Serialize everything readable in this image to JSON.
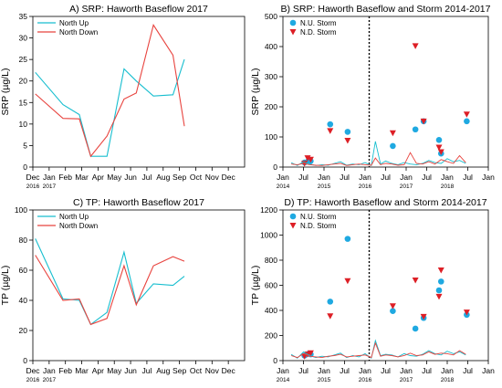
{
  "chart_data": [
    {
      "id": "A",
      "type": "line",
      "title": "A) SRP: Haworth Baseflow 2017",
      "ylabel": "SRP (µg/L)",
      "xlabel": "",
      "ylim": [
        0,
        35
      ],
      "yticks": [
        0,
        5,
        10,
        15,
        20,
        25,
        30,
        35
      ],
      "xlim": [
        0,
        13
      ],
      "xticks": [
        {
          "x": 0,
          "label": "Dec",
          "sub": "2016"
        },
        {
          "x": 1,
          "label": "Jan",
          "sub": "2017"
        },
        {
          "x": 2,
          "label": "Feb"
        },
        {
          "x": 3,
          "label": "Mar"
        },
        {
          "x": 4,
          "label": "Apr"
        },
        {
          "x": 5,
          "label": "May"
        },
        {
          "x": 6,
          "label": "Jun"
        },
        {
          "x": 7,
          "label": "Jul"
        },
        {
          "x": 8,
          "label": "Aug"
        },
        {
          "x": 9,
          "label": "Sep"
        },
        {
          "x": 10,
          "label": "Oct"
        },
        {
          "x": 11,
          "label": "Nov"
        },
        {
          "x": 12,
          "label": "Dec"
        }
      ],
      "legend": {
        "position": "top-left"
      },
      "series": [
        {
          "name": "North Up",
          "color": "#17becf",
          "x": [
            0.15,
            1.85,
            2.85,
            3.55,
            4.55,
            5.6,
            6.35,
            7.4,
            8.6,
            9.3
          ],
          "y": [
            22,
            14.5,
            12.2,
            2.5,
            2.5,
            22.8,
            20,
            16.5,
            16.8,
            25
          ]
        },
        {
          "name": "North Down",
          "color": "#e8433e",
          "x": [
            0.15,
            1.85,
            2.85,
            3.55,
            4.55,
            5.6,
            6.35,
            7.4,
            8.6,
            9.3
          ],
          "y": [
            17,
            11.3,
            11.2,
            2.5,
            7.2,
            15.8,
            17.2,
            33,
            26,
            9.5
          ]
        }
      ]
    },
    {
      "id": "B",
      "type": "scatter",
      "title": "B) SRP: Haworth Baseflow and Storm 2014-2017",
      "ylabel": "SRP (µg/L)",
      "xlabel": "",
      "ylim": [
        0,
        500
      ],
      "yticks": [
        0,
        100,
        200,
        300,
        400,
        500
      ],
      "xlim": [
        0,
        10
      ],
      "xticks": [
        {
          "x": 0,
          "label": "Jan",
          "sub": "2014"
        },
        {
          "x": 1,
          "label": "Jul"
        },
        {
          "x": 2,
          "label": "Jan",
          "sub": "2015"
        },
        {
          "x": 3,
          "label": "Jul"
        },
        {
          "x": 4,
          "label": "Jan",
          "sub": "2016"
        },
        {
          "x": 5,
          "label": "Jul"
        },
        {
          "x": 6,
          "label": "Jan",
          "sub": "2017"
        },
        {
          "x": 7,
          "label": "Jul"
        },
        {
          "x": 8,
          "label": "Jan",
          "sub": "2018"
        },
        {
          "x": 9,
          "label": "Jul"
        },
        {
          "x": 10,
          "label": "Jan"
        }
      ],
      "divider_x": 4.2,
      "legend": {
        "position": "top-left"
      },
      "series": [
        {
          "name": "N.U. Storm",
          "color": "#1fa9e1",
          "marker": "circle",
          "x": [
            1.05,
            1.25,
            1.35,
            2.3,
            3.15,
            5.35,
            6.45,
            6.85,
            7.6,
            7.7,
            8.95
          ],
          "y": [
            15,
            22,
            20,
            142,
            117,
            70,
            125,
            152,
            90,
            45,
            152
          ]
        },
        {
          "name": "N.D. Storm",
          "color": "#dd1f26",
          "marker": "triangle",
          "x": [
            1.05,
            1.2,
            1.35,
            2.3,
            3.15,
            5.35,
            6.45,
            6.85,
            7.6,
            7.7,
            8.95
          ],
          "y": [
            12,
            30,
            25,
            120,
            88,
            113,
            402,
            152,
            65,
            50,
            175
          ]
        },
        {
          "name": "",
          "color": "#17becf",
          "marker": "line",
          "x": [
            0.4,
            0.7,
            1.0,
            1.3,
            1.6,
            1.9,
            2.2,
            2.5,
            2.8,
            3.1,
            3.4,
            3.7,
            4.0,
            4.3,
            4.5,
            4.75,
            5.0,
            5.3,
            5.6,
            5.9,
            6.2,
            6.5,
            6.8,
            7.1,
            7.4,
            7.7,
            8.0,
            8.3,
            8.6,
            8.9
          ],
          "y": [
            15,
            5,
            18,
            10,
            5,
            8,
            6,
            12,
            18,
            6,
            10,
            8,
            15,
            5,
            85,
            10,
            20,
            12,
            8,
            15,
            10,
            8,
            12,
            22,
            15,
            12,
            28,
            18,
            22,
            12
          ]
        },
        {
          "name": "",
          "color": "#e8433e",
          "marker": "line",
          "x": [
            0.4,
            0.7,
            1.0,
            1.3,
            1.6,
            1.9,
            2.2,
            2.5,
            2.8,
            3.1,
            3.4,
            3.7,
            4.0,
            4.3,
            4.5,
            4.75,
            5.0,
            5.3,
            5.6,
            5.9,
            6.2,
            6.5,
            6.8,
            7.1,
            7.4,
            7.7,
            8.0,
            8.3,
            8.6,
            8.9
          ],
          "y": [
            10,
            8,
            12,
            8,
            6,
            5,
            8,
            10,
            12,
            5,
            8,
            10,
            8,
            6,
            30,
            8,
            12,
            10,
            6,
            8,
            48,
            12,
            10,
            18,
            10,
            25,
            18,
            12,
            38,
            15
          ]
        }
      ]
    },
    {
      "id": "C",
      "type": "line",
      "title": "C) TP: Haworth Baseflow 2017",
      "ylabel": "TP (µg/L)",
      "xlabel": "",
      "ylim": [
        0,
        100
      ],
      "yticks": [
        0,
        20,
        40,
        60,
        80,
        100
      ],
      "xlim": [
        0,
        13
      ],
      "xticks": [
        {
          "x": 0,
          "label": "Dec",
          "sub": "2016"
        },
        {
          "x": 1,
          "label": "Jan",
          "sub": "2017"
        },
        {
          "x": 2,
          "label": "Feb"
        },
        {
          "x": 3,
          "label": "Mar"
        },
        {
          "x": 4,
          "label": "Apr"
        },
        {
          "x": 5,
          "label": "May"
        },
        {
          "x": 6,
          "label": "Jun"
        },
        {
          "x": 7,
          "label": "Jul"
        },
        {
          "x": 8,
          "label": "Aug"
        },
        {
          "x": 9,
          "label": "Sep"
        },
        {
          "x": 10,
          "label": "Oct"
        },
        {
          "x": 11,
          "label": "Nov"
        },
        {
          "x": 12,
          "label": "Dec"
        }
      ],
      "legend": {
        "position": "top-left"
      },
      "series": [
        {
          "name": "North Up",
          "color": "#17becf",
          "x": [
            0.15,
            1.85,
            2.85,
            3.55,
            4.55,
            5.6,
            6.35,
            7.4,
            8.6,
            9.3
          ],
          "y": [
            81,
            41,
            40,
            24,
            32,
            72,
            38,
            51,
            50,
            56
          ]
        },
        {
          "name": "North Down",
          "color": "#e8433e",
          "x": [
            0.15,
            1.85,
            2.85,
            3.55,
            4.55,
            5.6,
            6.35,
            7.4,
            8.6,
            9.3
          ],
          "y": [
            70,
            40,
            41,
            24,
            28,
            63,
            37,
            63,
            69,
            66
          ]
        }
      ]
    },
    {
      "id": "D",
      "type": "scatter",
      "title": "D) TP: Haworth Baseflow and Storm 2014-2017",
      "ylabel": "TP (µg/L)",
      "xlabel": "",
      "ylim": [
        0,
        1200
      ],
      "yticks": [
        0,
        200,
        400,
        600,
        800,
        1000,
        1200
      ],
      "xlim": [
        0,
        10
      ],
      "xticks": [
        {
          "x": 0,
          "label": "Jan",
          "sub": "2014"
        },
        {
          "x": 1,
          "label": "Jul"
        },
        {
          "x": 2,
          "label": "Jan",
          "sub": "2015"
        },
        {
          "x": 3,
          "label": "Jul"
        },
        {
          "x": 4,
          "label": "Jan",
          "sub": "2016"
        },
        {
          "x": 5,
          "label": "Jul"
        },
        {
          "x": 6,
          "label": "Jan",
          "sub": "2017"
        },
        {
          "x": 7,
          "label": "Jul"
        },
        {
          "x": 8,
          "label": "Jan",
          "sub": "2018"
        },
        {
          "x": 9,
          "label": "Jul"
        },
        {
          "x": 10,
          "label": "Jan"
        }
      ],
      "divider_x": 4.2,
      "legend": {
        "position": "top-left"
      },
      "series": [
        {
          "name": "N.U. Storm",
          "color": "#1fa9e1",
          "marker": "circle",
          "x": [
            1.05,
            1.25,
            1.35,
            2.3,
            3.15,
            5.35,
            6.45,
            6.85,
            7.6,
            7.7,
            8.95
          ],
          "y": [
            40,
            55,
            50,
            470,
            970,
            395,
            255,
            340,
            560,
            630,
            365
          ]
        },
        {
          "name": "N.D. Storm",
          "color": "#dd1f26",
          "marker": "triangle",
          "x": [
            1.05,
            1.2,
            1.35,
            2.3,
            3.15,
            5.35,
            6.45,
            6.85,
            7.6,
            7.7,
            8.95
          ],
          "y": [
            35,
            50,
            60,
            355,
            635,
            435,
            640,
            350,
            510,
            720,
            385
          ]
        },
        {
          "name": "",
          "color": "#17becf",
          "marker": "line",
          "x": [
            0.4,
            0.7,
            1.0,
            1.3,
            1.6,
            1.9,
            2.2,
            2.5,
            2.8,
            3.1,
            3.4,
            3.7,
            4.0,
            4.3,
            4.5,
            4.75,
            5.0,
            5.3,
            5.6,
            5.9,
            6.2,
            6.5,
            6.8,
            7.1,
            7.4,
            7.7,
            8.0,
            8.3,
            8.6,
            8.9
          ],
          "y": [
            50,
            20,
            70,
            40,
            25,
            35,
            30,
            45,
            60,
            25,
            40,
            30,
            55,
            20,
            160,
            40,
            50,
            45,
            30,
            55,
            40,
            35,
            50,
            80,
            55,
            45,
            75,
            55,
            70,
            45
          ]
        },
        {
          "name": "",
          "color": "#e8433e",
          "marker": "line",
          "x": [
            0.4,
            0.7,
            1.0,
            1.3,
            1.6,
            1.9,
            2.2,
            2.5,
            2.8,
            3.1,
            3.4,
            3.7,
            4.0,
            4.3,
            4.5,
            4.75,
            5.0,
            5.3,
            5.6,
            5.9,
            6.2,
            6.5,
            6.8,
            7.1,
            7.4,
            7.7,
            8.0,
            8.3,
            8.6,
            8.9
          ],
          "y": [
            40,
            25,
            55,
            35,
            30,
            25,
            35,
            40,
            50,
            30,
            35,
            40,
            45,
            25,
            140,
            35,
            45,
            40,
            30,
            40,
            60,
            40,
            45,
            70,
            50,
            60,
            55,
            45,
            80,
            50
          ]
        }
      ]
    }
  ]
}
